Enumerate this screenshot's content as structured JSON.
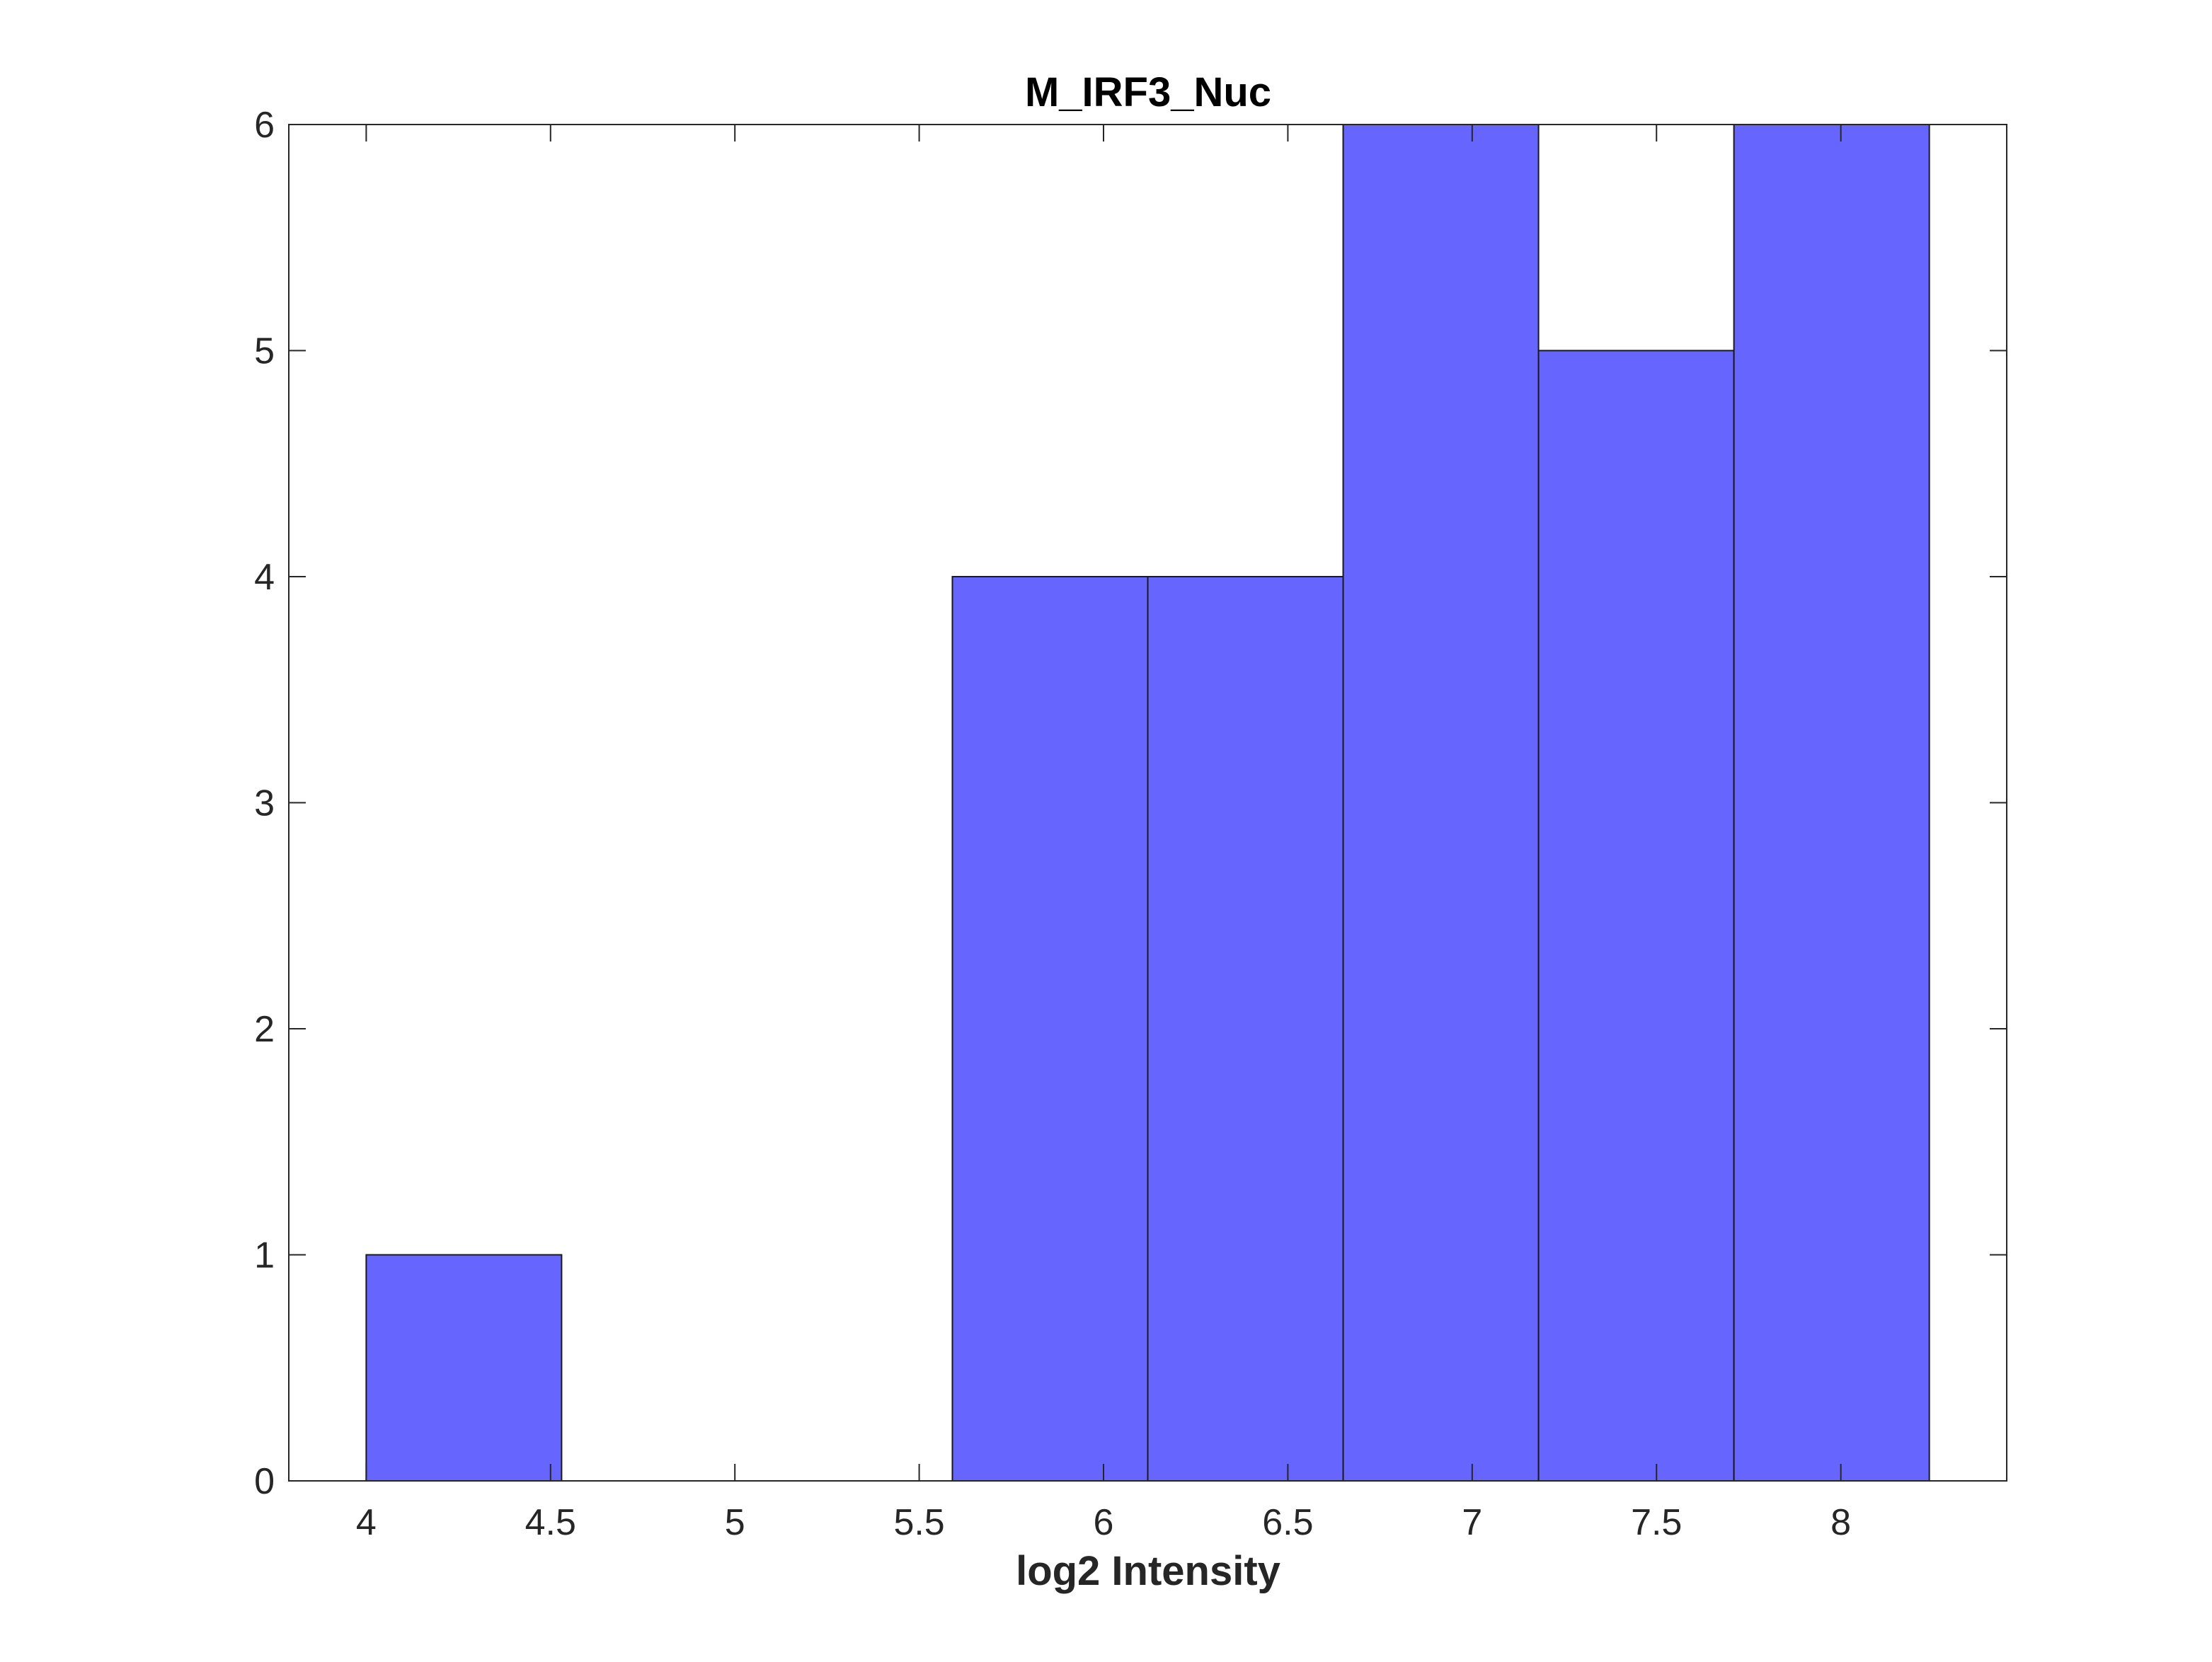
{
  "chart_data": {
    "type": "bar",
    "subtype": "histogram",
    "title": "M_IRF3_Nuc",
    "xlabel": "log2 Intensity",
    "ylabel": "",
    "xlim": [
      3.79,
      8.45
    ],
    "ylim": [
      0,
      6
    ],
    "xticks": [
      4,
      4.5,
      5,
      5.5,
      6,
      6.5,
      7,
      7.5,
      8
    ],
    "xtick_labels": [
      "4",
      "4.5",
      "5",
      "5.5",
      "6",
      "6.5",
      "7",
      "7.5",
      "8"
    ],
    "yticks": [
      0,
      1,
      2,
      3,
      4,
      5,
      6
    ],
    "ytick_labels": [
      "0",
      "1",
      "2",
      "3",
      "4",
      "5",
      "6"
    ],
    "bin_edges": [
      4.0,
      4.53,
      5.06,
      5.59,
      6.12,
      6.65,
      7.18,
      7.71,
      8.24
    ],
    "counts": [
      1,
      0,
      0,
      4,
      4,
      6,
      5,
      6
    ],
    "bar_color": "#6666ff",
    "edge_color": "#1a1a1a",
    "grid": false,
    "legend": false
  }
}
